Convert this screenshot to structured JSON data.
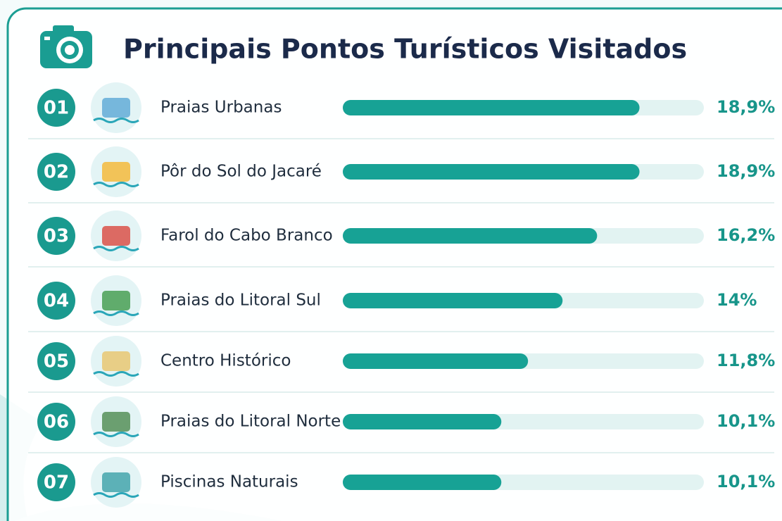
{
  "chart_data": {
    "type": "bar",
    "orientation": "horizontal",
    "title": "Principais Pontos Turísticos Visitados",
    "ranks": [
      "01",
      "02",
      "03",
      "04",
      "05",
      "06",
      "07"
    ],
    "categories": [
      "Praias Urbanas",
      "Pôr do Sol do Jacaré",
      "Farol do Cabo Branco",
      "Praias do Litoral Sul",
      "Centro Histórico",
      "Praias do Litoral Norte",
      "Piscinas Naturais"
    ],
    "values": [
      18.9,
      18.9,
      16.2,
      14,
      11.8,
      10.1,
      10.1
    ],
    "value_labels": [
      "18,9%",
      "18,9%",
      "16,2%",
      "14%",
      "11,8%",
      "10,1%",
      "10,1%"
    ],
    "color": "#17a295",
    "track_color": "#e2f3f2",
    "xlim": [
      0,
      23
    ]
  }
}
